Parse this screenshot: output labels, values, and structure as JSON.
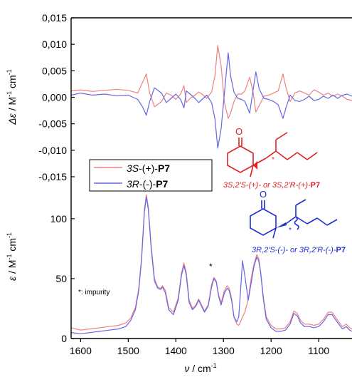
{
  "chart_data": [
    {
      "type": "line",
      "panel": "top",
      "ylabel": "Δε / M⁻¹ cm⁻¹",
      "ylim": [
        -0.015,
        0.015
      ],
      "yticks": [
        0.015,
        0.01,
        0.005,
        0.0,
        -0.005,
        -0.01,
        -0.015
      ],
      "ytick_labels": [
        "0,015",
        "0,010",
        "0,005",
        "0,000",
        "-0,005",
        "-0,010",
        "-0,015"
      ],
      "xlim": [
        1620,
        1030
      ],
      "x": [
        1620,
        1600,
        1575,
        1550,
        1525,
        1500,
        1480,
        1470,
        1462,
        1455,
        1445,
        1430,
        1420,
        1410,
        1400,
        1390,
        1383,
        1378,
        1370,
        1360,
        1352,
        1345,
        1335,
        1325,
        1318,
        1312,
        1305,
        1298,
        1290,
        1285,
        1278,
        1270,
        1262,
        1255,
        1245,
        1238,
        1232,
        1225,
        1215,
        1205,
        1195,
        1185,
        1175,
        1168,
        1160,
        1150,
        1140,
        1130,
        1120,
        1110,
        1100,
        1090,
        1080,
        1070,
        1060,
        1050,
        1040,
        1030
      ],
      "series": [
        {
          "name": "3S-(+)-P7",
          "color": "#f08080",
          "values": [
            0.0012,
            0.0014,
            0.0011,
            0.0013,
            0.0015,
            0.0013,
            0.0008,
            0.0028,
            0.0044,
            0.0008,
            -0.0018,
            -0.0008,
            0.0008,
            0.0004,
            -0.0004,
            0.0006,
            0.0022,
            -0.001,
            -0.0002,
            0.0004,
            0.001,
            0.0006,
            -0.0002,
            0.001,
            0.004,
            0.0098,
            0.006,
            -0.001,
            -0.004,
            -0.003,
            -0.0008,
            0.0006,
            0.0006,
            0.0012,
            0.0038,
            0.0012,
            -0.0028,
            -0.0016,
            0.0002,
            0.0004,
            0.0008,
            0.0012,
            0.0044,
            0.0016,
            -0.0008,
            0.0008,
            0.0012,
            0.0008,
            0.0004,
            0.0014,
            0.001,
            0.0004,
            0.0008,
            0.0002,
            0.0006,
            0.0002,
            -0.0004,
            -0.0006
          ]
        },
        {
          "name": "3R-(-)-P7",
          "color": "#6666e6",
          "values": [
            0.0004,
            0.0008,
            0.0004,
            0.0006,
            0.0003,
            0.0004,
            -0.0004,
            -0.0018,
            -0.0034,
            -0.0008,
            0.0018,
            0.0008,
            -0.001,
            -0.0002,
            0.0006,
            -0.0004,
            -0.002,
            0.0012,
            0.0006,
            -0.0002,
            -0.001,
            -0.0004,
            0.0004,
            -0.001,
            -0.004,
            -0.0096,
            -0.006,
            0.0008,
            0.0084,
            0.004,
            0.001,
            -0.0002,
            -0.0004,
            -0.0008,
            -0.003,
            0.0012,
            0.0048,
            0.0016,
            -0.0002,
            -0.0004,
            -0.0008,
            -0.0014,
            -0.004,
            -0.0018,
            0.0004,
            -0.0006,
            -0.0008,
            -0.0004,
            0.0002,
            -0.0006,
            -0.0004,
            0.0002,
            -0.0002,
            0.0004,
            -0.0002,
            0.0004,
            0.0006,
            0.0002
          ]
        }
      ]
    },
    {
      "type": "line",
      "panel": "bottom",
      "xlabel": "ν / cm⁻¹",
      "ylabel": "ε / M⁻¹ cm⁻¹",
      "ylim": [
        0,
        135
      ],
      "yticks": [
        0,
        50,
        100
      ],
      "ytick_labels": [
        "0",
        "50",
        "100"
      ],
      "xlim": [
        1620,
        1030
      ],
      "xticks": [
        1600,
        1500,
        1400,
        1300,
        1200,
        1100
      ],
      "xtick_labels": [
        "1600",
        "1500",
        "1400",
        "1300",
        "1200",
        "1100"
      ],
      "x": [
        1620,
        1600,
        1580,
        1560,
        1540,
        1520,
        1505,
        1495,
        1485,
        1478,
        1472,
        1466,
        1462,
        1458,
        1452,
        1445,
        1438,
        1432,
        1428,
        1422,
        1415,
        1405,
        1395,
        1388,
        1383,
        1378,
        1372,
        1365,
        1358,
        1352,
        1346,
        1340,
        1332,
        1325,
        1320,
        1315,
        1310,
        1305,
        1298,
        1292,
        1288,
        1283,
        1278,
        1272,
        1268,
        1264,
        1260,
        1255,
        1248,
        1242,
        1236,
        1230,
        1226,
        1222,
        1216,
        1210,
        1200,
        1190,
        1180,
        1170,
        1160,
        1152,
        1145,
        1138,
        1130,
        1120,
        1110,
        1100,
        1090,
        1080,
        1072,
        1065,
        1058,
        1050,
        1042,
        1035,
        1030
      ],
      "series": [
        {
          "name": "3S-(+)-P7",
          "color": "#f08080",
          "values": [
            9,
            7,
            8,
            9,
            10,
            11,
            13,
            17,
            26,
            42,
            68,
            108,
            120,
            110,
            78,
            50,
            43,
            42,
            44,
            40,
            26,
            22,
            34,
            55,
            63,
            55,
            32,
            25,
            28,
            33,
            28,
            23,
            28,
            45,
            51,
            48,
            36,
            30,
            40,
            44,
            42,
            34,
            18,
            12,
            11,
            14,
            18,
            22,
            33,
            50,
            62,
            70,
            67,
            56,
            34,
            18,
            11,
            8,
            8,
            9,
            14,
            23,
            21,
            15,
            12,
            12,
            11,
            12,
            16,
            22,
            22,
            18,
            14,
            10,
            12,
            9,
            8
          ]
        },
        {
          "name": "3R-(-)-P7",
          "color": "#6666e6",
          "values": [
            5,
            4,
            5,
            6,
            7,
            8,
            10,
            15,
            24,
            40,
            66,
            106,
            118,
            108,
            76,
            48,
            42,
            41,
            43,
            38,
            24,
            20,
            32,
            53,
            61,
            53,
            30,
            24,
            27,
            32,
            27,
            22,
            27,
            43,
            50,
            47,
            35,
            28,
            38,
            42,
            40,
            32,
            18,
            14,
            18,
            40,
            65,
            52,
            32,
            46,
            60,
            68,
            65,
            55,
            32,
            16,
            9,
            6,
            6,
            7,
            12,
            21,
            19,
            13,
            10,
            10,
            9,
            10,
            14,
            20,
            20,
            16,
            12,
            8,
            10,
            7,
            6
          ]
        }
      ]
    }
  ],
  "legend": {
    "items": [
      {
        "prefix": "3S",
        "middle": "-(+)-",
        "bold": "P7",
        "color": "#f08080"
      },
      {
        "prefix": "3R",
        "middle": "-(-)-",
        "bold": "P7",
        "color": "#6666e6"
      }
    ]
  },
  "annotations": {
    "impurity_label": "*: impurity",
    "impurity_star": "*",
    "molecule_top_label": "3S,2'S-(+)- or 3S,2'R-(+)-",
    "molecule_top_bold": "P7",
    "molecule_top_color": "#e02020",
    "molecule_bottom_label": "3R,2'S-(-)- or 3R,2'R-(-)-",
    "molecule_bottom_bold": "P7",
    "molecule_bottom_color": "#1f2fd0",
    "atom_O": "O",
    "stereo_star": "*"
  },
  "axis_text": {
    "top_ylabel": "Δε / M⁻¹ cm⁻¹",
    "bottom_ylabel": "ε / M⁻¹ cm⁻¹",
    "xlabel": "ν / cm⁻¹"
  }
}
